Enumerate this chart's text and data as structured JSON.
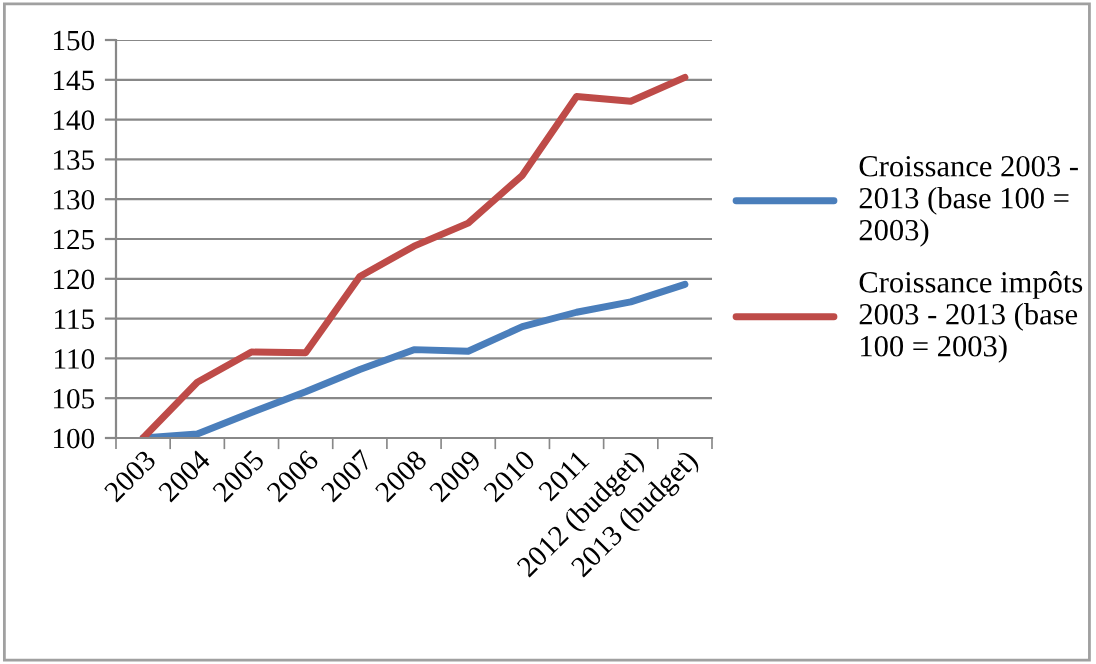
{
  "chart_data": {
    "type": "line",
    "categories": [
      "2003",
      "2004",
      "2005",
      "2006",
      "2007",
      "2008",
      "2009",
      "2010",
      "2011",
      "2012 (budget)",
      "2013 (budget)"
    ],
    "series": [
      {
        "name": "Croissance 2003 - 2013 (base 100 = 2003)",
        "color": "#4a7ebb",
        "values": [
          100,
          100.5,
          103.2,
          105.8,
          108.6,
          111.1,
          110.9,
          114,
          115.8,
          117.1,
          119.3
        ]
      },
      {
        "name": "Croissance impôts 2003 - 2013 (base 100 = 2003)",
        "color": "#be4b48",
        "values": [
          100,
          107,
          110.8,
          110.7,
          120.3,
          124.1,
          127,
          133,
          142.9,
          142.3,
          145.3
        ]
      }
    ],
    "ylim": [
      100,
      150
    ],
    "yticks": [
      100,
      105,
      110,
      115,
      120,
      125,
      130,
      135,
      140,
      145,
      150
    ],
    "grid": "y",
    "legend": "right",
    "marker": "none",
    "line_style": "solid"
  }
}
